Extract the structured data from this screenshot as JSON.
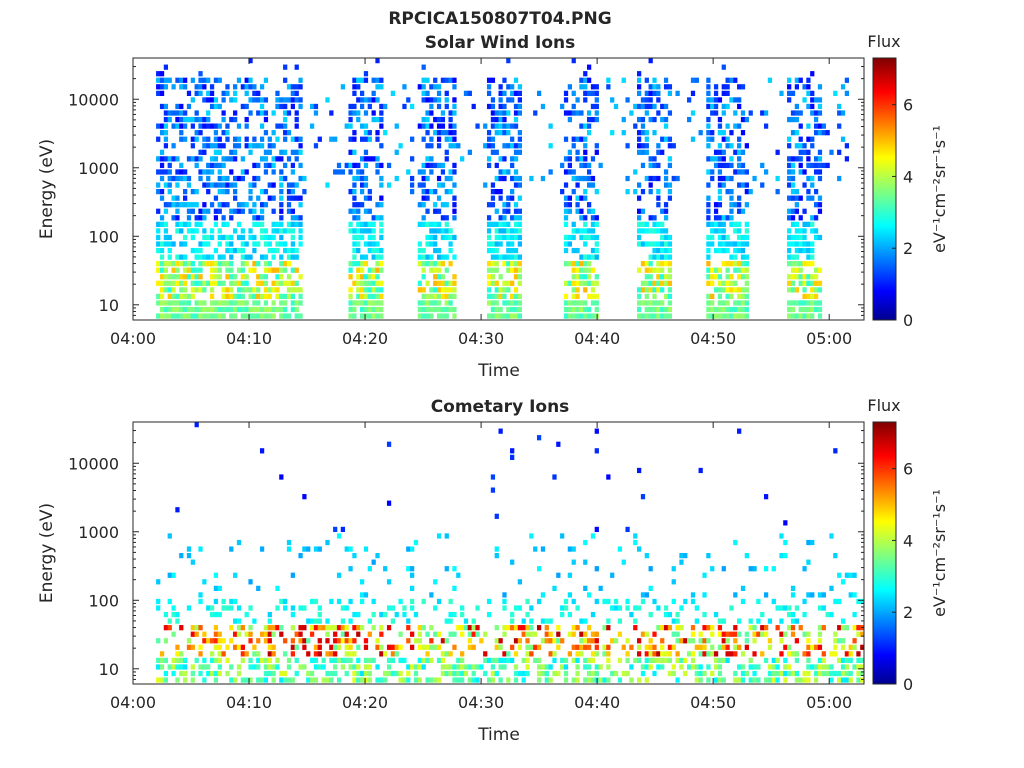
{
  "figure_title": "RPCICA150807T04.PNG",
  "chart_data": [
    {
      "type": "heatmap",
      "title": "Solar Wind Ions",
      "xlabel": "Time",
      "ylabel": "Energy (eV)",
      "x_ticks": [
        "04:00",
        "04:10",
        "04:20",
        "04:30",
        "04:40",
        "04:50",
        "05:00"
      ],
      "xlim": [
        "04:00",
        "05:03"
      ],
      "y_scale": "log",
      "y_ticks": [
        10,
        100,
        1000,
        10000
      ],
      "y_tick_labels": [
        "10",
        "100",
        "1000",
        "10000"
      ],
      "ylim": [
        6,
        40000
      ],
      "colorbar": {
        "title": "Flux",
        "label": "eV⁻¹cm⁻²sr⁻¹s⁻¹",
        "range": [
          0,
          7.3
        ],
        "ticks": [
          "0",
          "2",
          "4",
          "6"
        ],
        "colormap": "jet"
      },
      "bursts": [
        {
          "start": "04:02",
          "end": "04:14.5",
          "energy_min": 6,
          "energy_max": 20000
        },
        {
          "start": "04:18.5",
          "end": "04:21.5",
          "energy_min": 6,
          "energy_max": 15000
        },
        {
          "start": "04:24.5",
          "end": "04:28",
          "energy_min": 6,
          "energy_max": 15000
        },
        {
          "start": "04:30.5",
          "end": "04:33.5",
          "energy_min": 6,
          "energy_max": 20000
        },
        {
          "start": "04:37",
          "end": "04:40",
          "energy_min": 6,
          "energy_max": 20000
        },
        {
          "start": "04:43.5",
          "end": "04:46.5",
          "energy_min": 6,
          "energy_max": 15000
        },
        {
          "start": "04:49.5",
          "end": "04:53",
          "energy_min": 6,
          "energy_max": 15000
        },
        {
          "start": "04:56.5",
          "end": "04:59.5",
          "energy_min": 6,
          "energy_max": 15000
        }
      ],
      "peak_flux": 5.5
    },
    {
      "type": "heatmap",
      "title": "Cometary Ions",
      "xlabel": "Time",
      "ylabel": "Energy (eV)",
      "x_ticks": [
        "04:00",
        "04:10",
        "04:20",
        "04:30",
        "04:40",
        "04:50",
        "05:00"
      ],
      "xlim": [
        "04:00",
        "05:03"
      ],
      "y_scale": "log",
      "y_ticks": [
        10,
        100,
        1000,
        10000
      ],
      "y_tick_labels": [
        "10",
        "100",
        "1000",
        "10000"
      ],
      "ylim": [
        6,
        40000
      ],
      "colorbar": {
        "title": "Flux",
        "label": "eV⁻¹cm⁻²sr⁻¹s⁻¹",
        "range": [
          0,
          7.3
        ],
        "ticks": [
          "0",
          "2",
          "4",
          "6"
        ],
        "colormap": "jet"
      },
      "bursts": [
        {
          "start": "04:02",
          "end": "05:03",
          "energy_min": 6,
          "energy_max": 45,
          "note": "continuous low-energy band"
        }
      ],
      "peak_flux": 7.0
    }
  ]
}
